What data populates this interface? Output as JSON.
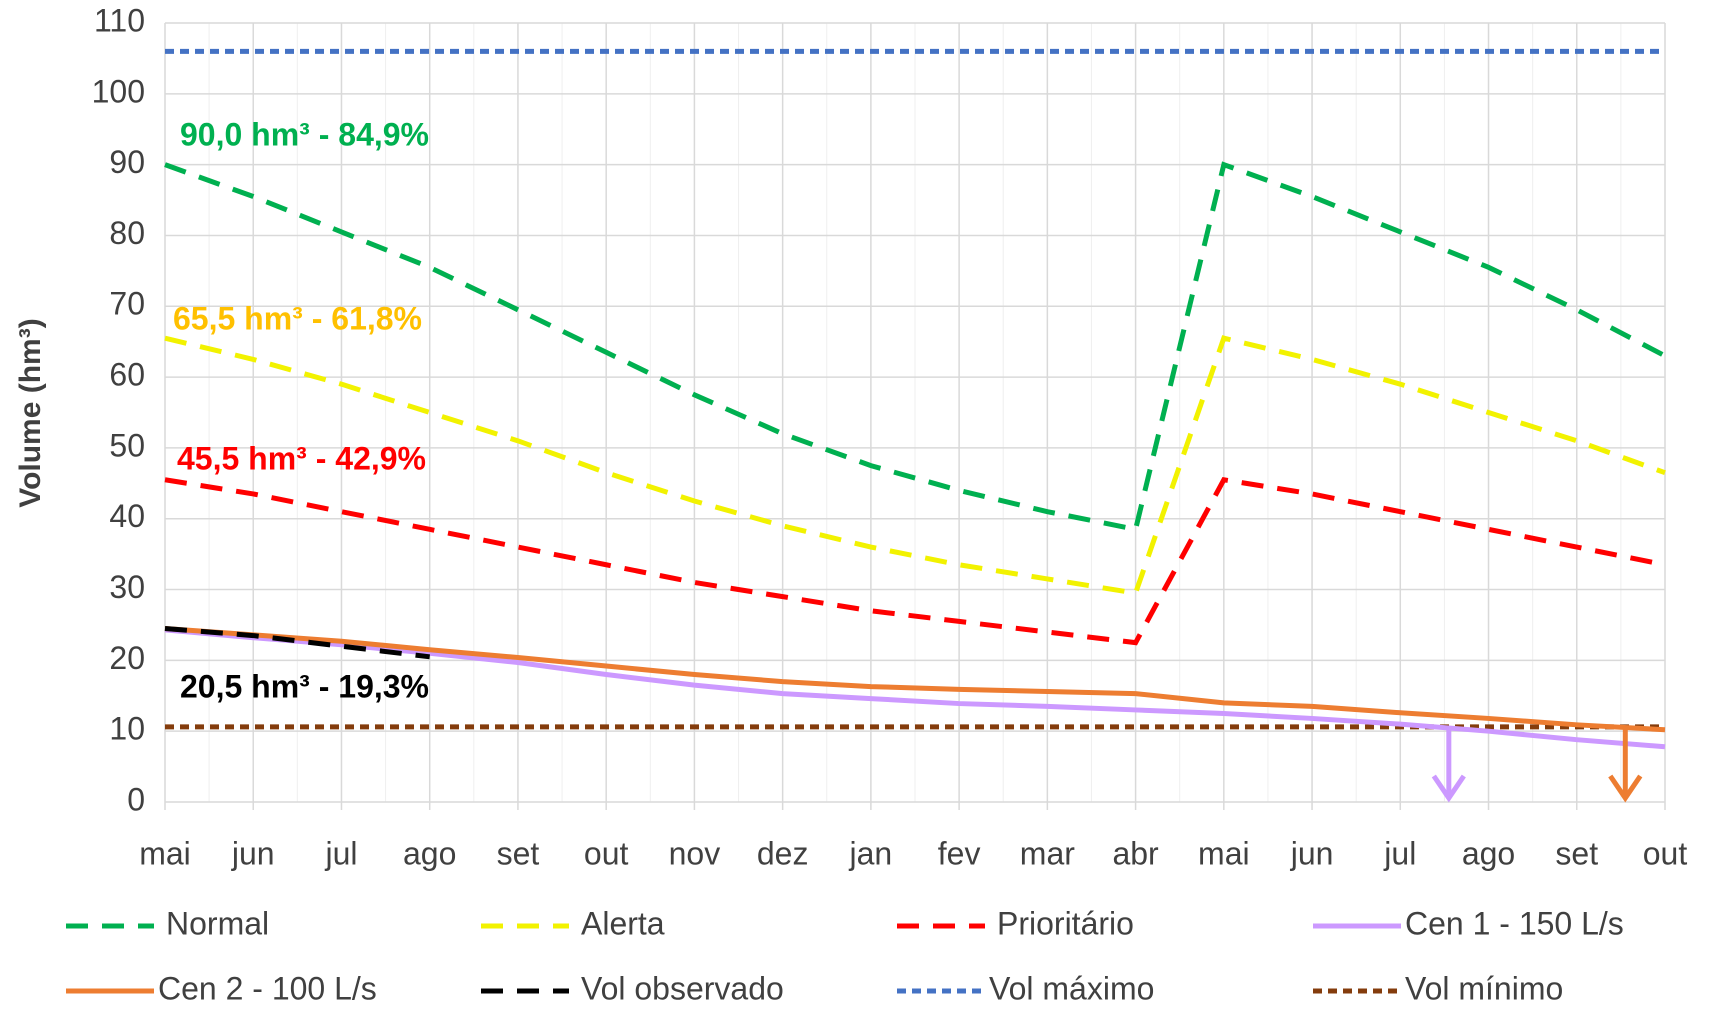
{
  "chart_data": {
    "type": "line",
    "y_label": "Volume (hm³)",
    "categories": [
      "mai",
      "jun",
      "jul",
      "ago",
      "set",
      "out",
      "nov",
      "dez",
      "jan",
      "fev",
      "mar",
      "abr",
      "mai",
      "jun",
      "jul",
      "ago",
      "set",
      "out"
    ],
    "ylim": [
      0,
      110
    ],
    "yticks": [
      0,
      10,
      20,
      30,
      40,
      50,
      60,
      70,
      80,
      90,
      100,
      110
    ],
    "grid": true,
    "series": [
      {
        "name": "Normal",
        "color": "#00b050",
        "dash": "dash",
        "values": [
          90,
          85.5,
          80.5,
          75.5,
          69.5,
          63.5,
          57.5,
          52,
          47.5,
          44,
          41,
          38.5,
          90,
          85.5,
          80.5,
          75.5,
          69.5,
          63
        ]
      },
      {
        "name": "Alerta",
        "color": "#f2f200",
        "dash": "dash",
        "values": [
          65.5,
          62.5,
          59,
          55,
          51,
          46.5,
          42.5,
          39,
          36,
          33.5,
          31.5,
          29.5,
          65.5,
          62.5,
          59,
          55,
          51,
          46.5
        ]
      },
      {
        "name": "Prioritário",
        "color": "#ff0000",
        "dash": "dash",
        "values": [
          45.5,
          43.5,
          41,
          38.5,
          36,
          33.5,
          31,
          29,
          27,
          25.5,
          24,
          22.5,
          45.5,
          43.5,
          41,
          38.5,
          36,
          33.5
        ]
      },
      {
        "name": "Cen 1 - 150 L/s",
        "color": "#cc99ff",
        "dash": "solid",
        "values": [
          24.3,
          23.2,
          22.2,
          21,
          19.7,
          18,
          16.5,
          15.3,
          14.6,
          13.9,
          13.5,
          13,
          12.5,
          11.8,
          11,
          10,
          8.8,
          7.8
        ]
      },
      {
        "name": "Cen 2 - 100 L/s",
        "color": "#ed7d31",
        "dash": "solid",
        "values": [
          24.5,
          23.6,
          22.7,
          21.5,
          20.4,
          19.2,
          18,
          17,
          16.3,
          15.9,
          15.6,
          15.3,
          14,
          13.5,
          12.6,
          11.8,
          10.9,
          10.2
        ]
      },
      {
        "name": "Vol observado",
        "color": "#000000",
        "dash": "dash",
        "values": [
          24.5,
          23.5,
          22,
          20.5,
          null,
          null,
          null,
          null,
          null,
          null,
          null,
          null,
          null,
          null,
          null,
          null,
          null,
          null
        ]
      },
      {
        "name": "Vol máximo",
        "color": "#4472c4",
        "dash": "dot",
        "values": [
          106,
          106,
          106,
          106,
          106,
          106,
          106,
          106,
          106,
          106,
          106,
          106,
          106,
          106,
          106,
          106,
          106,
          106
        ]
      },
      {
        "name": "Vol mínimo",
        "color": "#843c0c",
        "dash": "dot",
        "values": [
          10.6,
          10.6,
          10.6,
          10.6,
          10.6,
          10.6,
          10.6,
          10.6,
          10.6,
          10.6,
          10.6,
          10.6,
          10.6,
          10.6,
          10.6,
          10.6,
          10.6,
          10.6
        ]
      }
    ],
    "annotations": [
      {
        "text": "90,0 hm³ - 84,9%",
        "color": "#00b050"
      },
      {
        "text": "65,5 hm³ - 61,8%",
        "color": "#ffc000"
      },
      {
        "text": "45,5 hm³ - 42,9%",
        "color": "#ff0000"
      },
      {
        "text": "20,5 hm³ - 19,3%",
        "color": "#000000"
      }
    ]
  }
}
